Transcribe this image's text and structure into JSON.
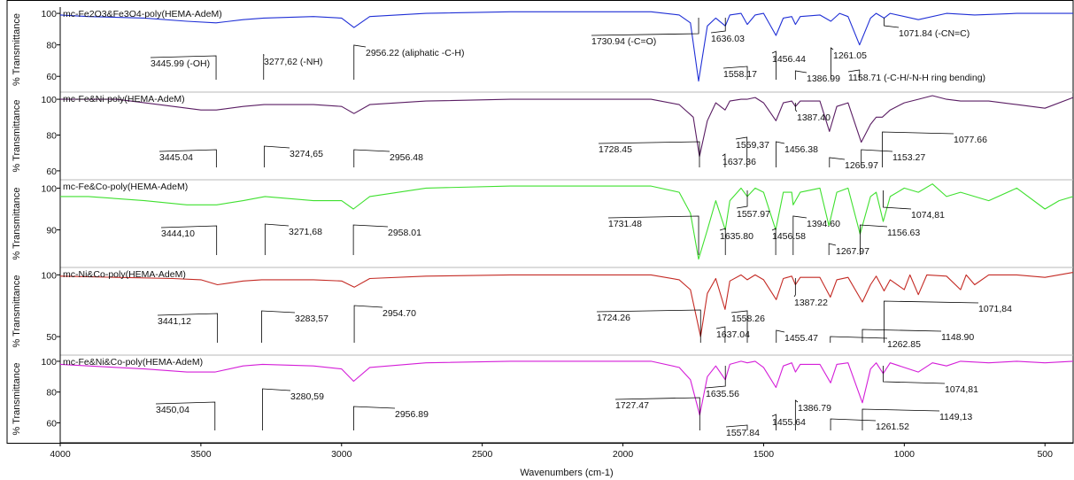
{
  "chart_data": {
    "type": "line",
    "xlabel": "Wavenumbers (cm-1)",
    "ylabel": "% Transmittance",
    "xlim": [
      4000,
      400
    ],
    "x_reversed": true,
    "x_ticks": [
      "4000",
      "3500",
      "3000",
      "2500",
      "2000",
      "1500",
      "1000",
      "500"
    ],
    "x_tick_values": [
      4000,
      3500,
      3000,
      2500,
      2000,
      1500,
      1000,
      500
    ],
    "panels": [
      {
        "name": "mc-Fe2O3&Fe3O4-poly(HEMA-AdeM)",
        "color": "#1f2fd6",
        "ylim": [
          50,
          104
        ],
        "y_ticks": [
          100,
          80,
          60
        ],
        "points": [
          [
            4000,
            99
          ],
          [
            3900,
            98
          ],
          [
            3700,
            97
          ],
          [
            3550,
            95
          ],
          [
            3446,
            94
          ],
          [
            3350,
            96
          ],
          [
            3277,
            97
          ],
          [
            3100,
            98
          ],
          [
            3000,
            97
          ],
          [
            2956,
            91
          ],
          [
            2900,
            98
          ],
          [
            2700,
            100
          ],
          [
            2400,
            101
          ],
          [
            2100,
            101
          ],
          [
            1900,
            101
          ],
          [
            1800,
            99
          ],
          [
            1760,
            94
          ],
          [
            1731,
            57
          ],
          [
            1700,
            92
          ],
          [
            1670,
            97
          ],
          [
            1636,
            92
          ],
          [
            1620,
            99
          ],
          [
            1580,
            100
          ],
          [
            1558,
            93
          ],
          [
            1530,
            99
          ],
          [
            1500,
            100
          ],
          [
            1456,
            86
          ],
          [
            1430,
            97
          ],
          [
            1400,
            98
          ],
          [
            1387,
            93
          ],
          [
            1370,
            98
          ],
          [
            1300,
            99
          ],
          [
            1261,
            95
          ],
          [
            1230,
            100
          ],
          [
            1200,
            98
          ],
          [
            1159,
            80
          ],
          [
            1120,
            97
          ],
          [
            1100,
            100
          ],
          [
            1072,
            97
          ],
          [
            1050,
            100
          ],
          [
            950,
            96
          ],
          [
            850,
            100
          ],
          [
            750,
            99
          ],
          [
            600,
            100
          ],
          [
            400,
            100
          ]
        ]
      },
      {
        "name": "mc-Fe&Ni-poly(HEMA-AdeM)",
        "color": "#5a1d63",
        "ylim": [
          55,
          104
        ],
        "y_ticks": [
          100,
          80,
          60
        ],
        "points": [
          [
            4000,
            100
          ],
          [
            3800,
            100
          ],
          [
            3650,
            97
          ],
          [
            3500,
            94
          ],
          [
            3445,
            94
          ],
          [
            3350,
            96
          ],
          [
            3275,
            97
          ],
          [
            3100,
            97
          ],
          [
            3000,
            96
          ],
          [
            2956,
            92
          ],
          [
            2900,
            97
          ],
          [
            2700,
            99
          ],
          [
            2400,
            100
          ],
          [
            2100,
            100
          ],
          [
            1900,
            100
          ],
          [
            1800,
            97
          ],
          [
            1750,
            90
          ],
          [
            1728,
            68
          ],
          [
            1700,
            88
          ],
          [
            1670,
            98
          ],
          [
            1637,
            94
          ],
          [
            1620,
            99
          ],
          [
            1580,
            100
          ],
          [
            1559,
            100
          ],
          [
            1530,
            101
          ],
          [
            1500,
            98
          ],
          [
            1456,
            88
          ],
          [
            1430,
            98
          ],
          [
            1400,
            99
          ],
          [
            1387,
            96
          ],
          [
            1370,
            99
          ],
          [
            1300,
            99
          ],
          [
            1266,
            82
          ],
          [
            1240,
            96
          ],
          [
            1200,
            98
          ],
          [
            1153,
            76
          ],
          [
            1120,
            86
          ],
          [
            1100,
            90
          ],
          [
            1078,
            90
          ],
          [
            1050,
            94
          ],
          [
            1000,
            98
          ],
          [
            950,
            100
          ],
          [
            900,
            102
          ],
          [
            850,
            100
          ],
          [
            800,
            99
          ],
          [
            700,
            99
          ],
          [
            600,
            97
          ],
          [
            500,
            95
          ],
          [
            400,
            101
          ]
        ]
      },
      {
        "name": "mc-Fe&Co-poly(HEMA-AdeM)",
        "color": "#3fe02f",
        "ylim": [
          81,
          102
        ],
        "y_ticks": [
          100,
          90
        ],
        "points": [
          [
            4000,
            98
          ],
          [
            3900,
            98
          ],
          [
            3700,
            97
          ],
          [
            3550,
            96
          ],
          [
            3444,
            96
          ],
          [
            3350,
            97
          ],
          [
            3272,
            98
          ],
          [
            3100,
            97
          ],
          [
            3000,
            97
          ],
          [
            2958,
            95
          ],
          [
            2900,
            98
          ],
          [
            2700,
            100
          ],
          [
            2400,
            100.5
          ],
          [
            2100,
            100.5
          ],
          [
            1900,
            100.5
          ],
          [
            1800,
            99
          ],
          [
            1760,
            94
          ],
          [
            1731,
            83
          ],
          [
            1700,
            90
          ],
          [
            1670,
            97
          ],
          [
            1636,
            90
          ],
          [
            1620,
            97
          ],
          [
            1580,
            100
          ],
          [
            1558,
            98
          ],
          [
            1530,
            100
          ],
          [
            1500,
            99
          ],
          [
            1457,
            90
          ],
          [
            1430,
            99
          ],
          [
            1400,
            99
          ],
          [
            1395,
            96
          ],
          [
            1370,
            99
          ],
          [
            1300,
            100
          ],
          [
            1268,
            91
          ],
          [
            1240,
            99
          ],
          [
            1200,
            100
          ],
          [
            1157,
            89
          ],
          [
            1120,
            98
          ],
          [
            1100,
            99
          ],
          [
            1075,
            92
          ],
          [
            1050,
            98
          ],
          [
            1000,
            100
          ],
          [
            950,
            99
          ],
          [
            900,
            101
          ],
          [
            850,
            98
          ],
          [
            800,
            99
          ],
          [
            700,
            97
          ],
          [
            600,
            100
          ],
          [
            500,
            95
          ],
          [
            450,
            97
          ],
          [
            400,
            98
          ]
        ]
      },
      {
        "name": "mc-Ni&Co-poly(HEMA-AdeM)",
        "color": "#c42a24",
        "ylim": [
          35,
          106
        ],
        "y_ticks": [
          100,
          50
        ],
        "points": [
          [
            4000,
            99
          ],
          [
            3800,
            98
          ],
          [
            3600,
            97
          ],
          [
            3500,
            96
          ],
          [
            3441,
            92
          ],
          [
            3350,
            95
          ],
          [
            3284,
            96
          ],
          [
            3100,
            96
          ],
          [
            3000,
            95
          ],
          [
            2955,
            90
          ],
          [
            2900,
            97
          ],
          [
            2700,
            99
          ],
          [
            2400,
            100
          ],
          [
            2100,
            100
          ],
          [
            1900,
            100
          ],
          [
            1800,
            96
          ],
          [
            1760,
            88
          ],
          [
            1724,
            50
          ],
          [
            1700,
            85
          ],
          [
            1670,
            97
          ],
          [
            1637,
            72
          ],
          [
            1620,
            95
          ],
          [
            1580,
            100
          ],
          [
            1558,
            96
          ],
          [
            1530,
            100
          ],
          [
            1500,
            96
          ],
          [
            1455,
            80
          ],
          [
            1430,
            97
          ],
          [
            1400,
            99
          ],
          [
            1387,
            92
          ],
          [
            1370,
            98
          ],
          [
            1300,
            98
          ],
          [
            1263,
            82
          ],
          [
            1240,
            96
          ],
          [
            1200,
            98
          ],
          [
            1149,
            78
          ],
          [
            1120,
            92
          ],
          [
            1100,
            99
          ],
          [
            1072,
            87
          ],
          [
            1050,
            96
          ],
          [
            1000,
            88
          ],
          [
            980,
            100
          ],
          [
            950,
            84
          ],
          [
            920,
            100
          ],
          [
            850,
            99
          ],
          [
            800,
            88
          ],
          [
            780,
            100
          ],
          [
            750,
            92
          ],
          [
            700,
            100
          ],
          [
            600,
            100
          ],
          [
            500,
            98
          ],
          [
            400,
            102
          ]
        ]
      },
      {
        "name": "mc-Fe&Ni&Co-poly(HEMA-AdeM)",
        "color": "#d41ed8",
        "ylim": [
          47,
          104
        ],
        "y_ticks": [
          100,
          80,
          60
        ],
        "points": [
          [
            4000,
            98
          ],
          [
            3900,
            97
          ],
          [
            3700,
            95
          ],
          [
            3550,
            93
          ],
          [
            3450,
            93
          ],
          [
            3350,
            97
          ],
          [
            3281,
            98
          ],
          [
            3100,
            97
          ],
          [
            3000,
            95
          ],
          [
            2957,
            87
          ],
          [
            2900,
            96
          ],
          [
            2700,
            99
          ],
          [
            2400,
            100
          ],
          [
            2100,
            100
          ],
          [
            1900,
            100
          ],
          [
            1800,
            96
          ],
          [
            1760,
            88
          ],
          [
            1727,
            65
          ],
          [
            1700,
            90
          ],
          [
            1670,
            97
          ],
          [
            1636,
            88
          ],
          [
            1620,
            98
          ],
          [
            1580,
            100
          ],
          [
            1558,
            99
          ],
          [
            1530,
            100
          ],
          [
            1500,
            96
          ],
          [
            1456,
            83
          ],
          [
            1430,
            97
          ],
          [
            1400,
            99
          ],
          [
            1387,
            93
          ],
          [
            1370,
            98
          ],
          [
            1300,
            98
          ],
          [
            1262,
            86
          ],
          [
            1240,
            98
          ],
          [
            1200,
            99
          ],
          [
            1149,
            73
          ],
          [
            1120,
            95
          ],
          [
            1100,
            99
          ],
          [
            1075,
            92
          ],
          [
            1050,
            99
          ],
          [
            950,
            93
          ],
          [
            900,
            99
          ],
          [
            850,
            97
          ],
          [
            800,
            100
          ],
          [
            700,
            99
          ],
          [
            600,
            100
          ],
          [
            500,
            99
          ],
          [
            400,
            100
          ]
        ]
      }
    ],
    "annotations": [
      [
        {
          "text": "3445.99 (-OH)",
          "x": 3446
        },
        {
          "text": "3277,62 (-NH)",
          "x": 3277
        },
        {
          "text": "2956.22 (aliphatic -C-H)",
          "x": 2956
        },
        {
          "text": "1730.94 (-C=O)",
          "x": 1731
        },
        {
          "text": "1636.03",
          "x": 1636
        },
        {
          "text": "1558.17",
          "x": 1558
        },
        {
          "text": "1456.44",
          "x": 1456
        },
        {
          "text": "1386.99",
          "x": 1387
        },
        {
          "text": "1261.05",
          "x": 1261
        },
        {
          "text": "1158.71 (-C-H/-N-H ring bending)",
          "x": 1159
        },
        {
          "text": "1071.84 (-CN=C)",
          "x": 1072
        }
      ],
      [
        {
          "text": "3445.04",
          "x": 3445
        },
        {
          "text": "3274,65",
          "x": 3275
        },
        {
          "text": "2956.48",
          "x": 2956
        },
        {
          "text": "1728.45",
          "x": 1728
        },
        {
          "text": "1637.36",
          "x": 1637
        },
        {
          "text": "1559,37",
          "x": 1559
        },
        {
          "text": "1456.38",
          "x": 1456
        },
        {
          "text": "1387.40",
          "x": 1387
        },
        {
          "text": "1265.97",
          "x": 1266
        },
        {
          "text": "1153.27",
          "x": 1153
        },
        {
          "text": "1077.66",
          "x": 1078
        }
      ],
      [
        {
          "text": "3444,10",
          "x": 3444
        },
        {
          "text": "3271,68",
          "x": 3272
        },
        {
          "text": "2958.01",
          "x": 2958
        },
        {
          "text": "1731.48",
          "x": 1731
        },
        {
          "text": "1635.80",
          "x": 1636
        },
        {
          "text": "1557.97",
          "x": 1558
        },
        {
          "text": "1456.58",
          "x": 1457
        },
        {
          "text": "1394.60",
          "x": 1395
        },
        {
          "text": "1267.97",
          "x": 1268
        },
        {
          "text": "1156.63",
          "x": 1157
        },
        {
          "text": "1074,81",
          "x": 1075
        }
      ],
      [
        {
          "text": "3441,12",
          "x": 3441
        },
        {
          "text": "3283,57",
          "x": 3284
        },
        {
          "text": "2954.70",
          "x": 2955
        },
        {
          "text": "1724.26",
          "x": 1724
        },
        {
          "text": "1637.04",
          "x": 1637
        },
        {
          "text": "1558.26",
          "x": 1558
        },
        {
          "text": "1455.47",
          "x": 1455
        },
        {
          "text": "1387.22",
          "x": 1387
        },
        {
          "text": "1262.85",
          "x": 1263
        },
        {
          "text": "1148.90",
          "x": 1149
        },
        {
          "text": "1071,84",
          "x": 1072
        }
      ],
      [
        {
          "text": "3450,04",
          "x": 3450
        },
        {
          "text": "3280,59",
          "x": 3281
        },
        {
          "text": "2956.89",
          "x": 2957
        },
        {
          "text": "1727.47",
          "x": 1727
        },
        {
          "text": "1635.56",
          "x": 1636
        },
        {
          "text": "1557.84",
          "x": 1558
        },
        {
          "text": "1455.64",
          "x": 1456
        },
        {
          "text": "1386.79",
          "x": 1387
        },
        {
          "text": "1261.52",
          "x": 1262
        },
        {
          "text": "1149,13",
          "x": 1149
        },
        {
          "text": "1074,81",
          "x": 1075
        }
      ]
    ]
  }
}
